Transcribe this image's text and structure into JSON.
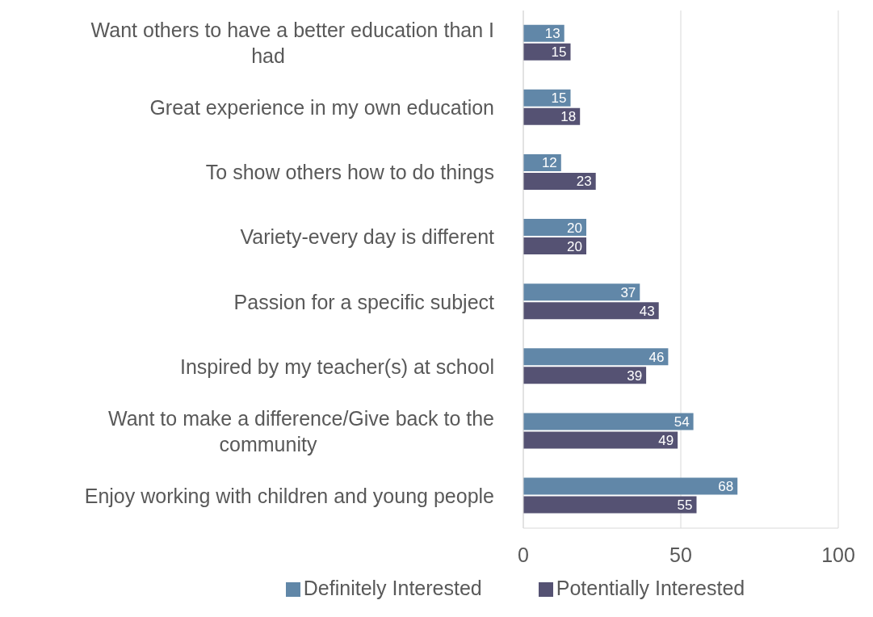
{
  "chart_data": {
    "type": "bar",
    "orientation": "horizontal",
    "categories": [
      "Want others to have a better education than I had",
      "Great experience in my own education",
      "To show others how to do things",
      "Variety-every day is different",
      "Passion for a specific subject",
      "Inspired by my teacher(s) at school",
      "Want to make a difference/Give back to the community",
      "Enjoy working with children and young people"
    ],
    "series": [
      {
        "name": "Definitely Interested",
        "color": "#6187a8",
        "values": [
          13,
          15,
          12,
          20,
          37,
          46,
          54,
          68
        ]
      },
      {
        "name": "Potentially Interested",
        "color": "#555273",
        "values": [
          15,
          18,
          23,
          20,
          43,
          39,
          49,
          55
        ]
      }
    ],
    "xlim": [
      0,
      100
    ],
    "xticks": [
      0,
      50,
      100
    ],
    "grid": "x",
    "legend": "bottom",
    "data_labels": true
  }
}
